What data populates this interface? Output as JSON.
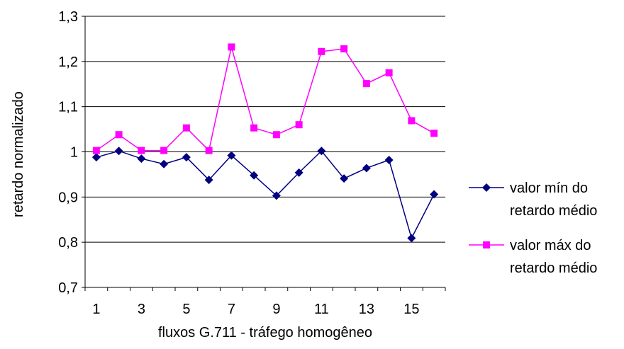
{
  "chart_data": {
    "type": "line",
    "title": "",
    "xlabel": "fluxos G.711 - tráfego homogêneo",
    "ylabel": "retardo normalizado",
    "x": [
      1,
      2,
      3,
      4,
      5,
      6,
      7,
      8,
      9,
      10,
      11,
      12,
      13,
      14,
      15,
      16
    ],
    "x_tick_labels": [
      "1",
      "3",
      "5",
      "7",
      "9",
      "11",
      "13",
      "15"
    ],
    "y_tick_labels": [
      "0,7",
      "0,8",
      "0,9",
      "1",
      "1,1",
      "1,2",
      "1,3"
    ],
    "ylim": [
      0.7,
      1.3
    ],
    "grid": "horizontal",
    "legend_position": "right",
    "series": [
      {
        "name": "valor mín do retardo médio",
        "name_lines": [
          "valor mín do",
          "retardo médio"
        ],
        "color": "#000080",
        "marker": "diamond",
        "values": [
          0.988,
          1.002,
          0.985,
          0.973,
          0.988,
          0.938,
          0.992,
          0.948,
          0.903,
          0.954,
          1.002,
          0.941,
          0.964,
          0.982,
          0.809,
          0.906
        ]
      },
      {
        "name": "valor máx do retardo médio",
        "name_lines": [
          "valor máx do",
          "retardo médio"
        ],
        "color": "#FF00FF",
        "marker": "square",
        "values": [
          1.003,
          1.038,
          1.003,
          1.003,
          1.053,
          1.003,
          1.232,
          1.053,
          1.038,
          1.06,
          1.222,
          1.228,
          1.151,
          1.175,
          1.069,
          1.041
        ]
      }
    ]
  }
}
